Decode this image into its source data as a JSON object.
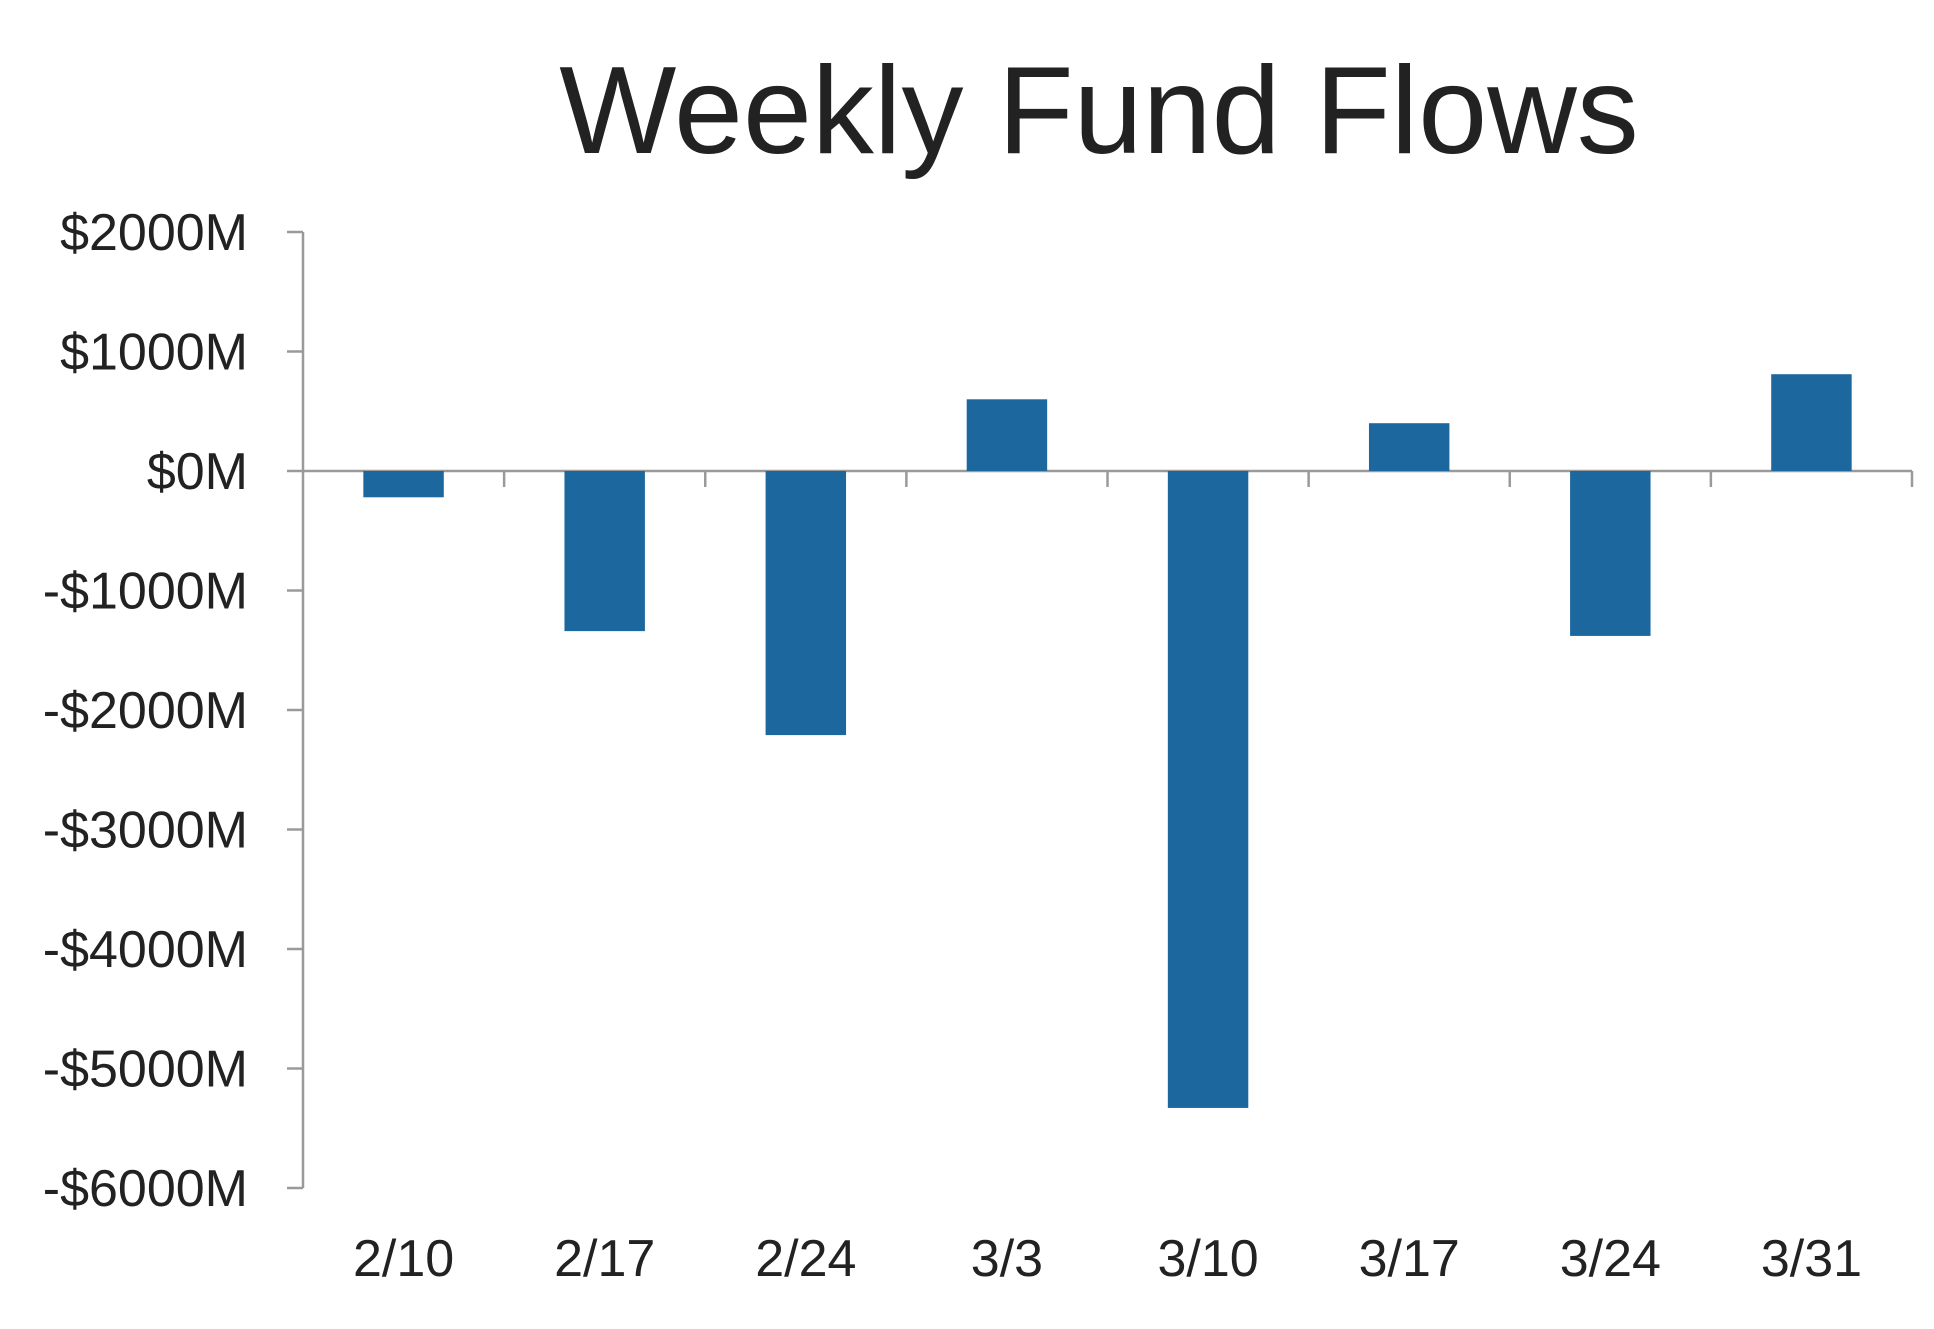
{
  "chart_data": {
    "type": "bar",
    "title": "Weekly Fund Flows",
    "xlabel": "",
    "ylabel": "",
    "categories": [
      "2/10",
      "2/17",
      "2/24",
      "3/3",
      "3/10",
      "3/17",
      "3/24",
      "3/31"
    ],
    "values": [
      -220,
      -1340,
      -2210,
      600,
      -5330,
      400,
      -1380,
      810
    ],
    "ylim": [
      -6000,
      2000
    ],
    "yticks": [
      2000,
      1000,
      0,
      -1000,
      -2000,
      -3000,
      -4000,
      -5000,
      -6000
    ],
    "ytick_labels": [
      "$2000M",
      "$1000M",
      "$0M",
      "-$1000M",
      "-$2000M",
      "-$3000M",
      "-$4000M",
      "-$5000M",
      "-$6000M"
    ],
    "bar_color": "#1b679e",
    "axis_color": "#9a9a9a",
    "grid": false,
    "legend": "none"
  }
}
